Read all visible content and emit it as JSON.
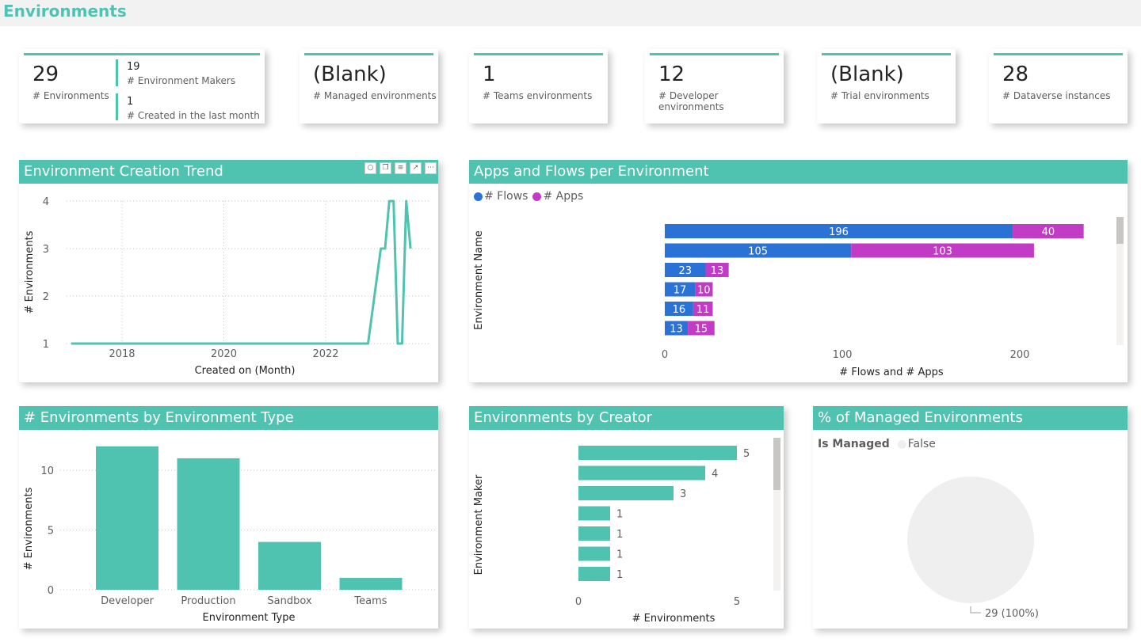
{
  "page": {
    "title": "Environments"
  },
  "cards": [
    {
      "value": "29",
      "label": "# Environments",
      "sub": [
        {
          "value": "19",
          "label": "# Environment Makers"
        },
        {
          "value": "1",
          "label": "# Created in the last month"
        }
      ]
    },
    {
      "value": "(Blank)",
      "label": "# Managed environments"
    },
    {
      "value": "1",
      "label": "# Teams environments"
    },
    {
      "value": "12",
      "label": "# Developer environments"
    },
    {
      "value": "(Blank)",
      "label": "# Trial environments"
    },
    {
      "value": "28",
      "label": "# Dataverse instances"
    }
  ],
  "colors": {
    "accent": "#4fc3b0",
    "flows": "#2b72d6",
    "apps": "#c23bc5",
    "pie": "#efefef"
  },
  "visual_tools": [
    "pin-icon",
    "copy-icon",
    "filter-icon",
    "focus-icon",
    "more-icon"
  ],
  "trend": {
    "title": "Environment Creation Trend",
    "chart_data": {
      "type": "line",
      "xlabel": "Created on (Month)",
      "ylabel": "# Environments",
      "xticks": [
        "2018",
        "2020",
        "2022"
      ],
      "yticks": [
        1,
        2,
        3,
        4
      ],
      "ylim": [
        1,
        4
      ],
      "grid": true,
      "x": [
        "2017-01",
        "2022-11",
        "2023-02",
        "2023-03",
        "2023-04",
        "2023-05",
        "2023-06",
        "2023-07",
        "2023-08",
        "2023-09"
      ],
      "values": [
        1,
        1,
        3,
        3,
        4,
        4,
        1,
        1,
        4,
        3
      ]
    }
  },
  "apps_flows": {
    "title": "Apps and Flows per Environment",
    "chart_data": {
      "type": "bar",
      "orientation": "horizontal",
      "stacked": true,
      "xlabel": "# Flows and # Apps",
      "ylabel": "Environment Name",
      "xticks": [
        0,
        100,
        200
      ],
      "legend_position": "top-left",
      "series": [
        {
          "name": "# Flows",
          "values": [
            196,
            105,
            23,
            17,
            16,
            13
          ]
        },
        {
          "name": "# Apps",
          "values": [
            40,
            103,
            13,
            10,
            11,
            15
          ]
        }
      ]
    }
  },
  "by_type": {
    "title": "# Environments by Environment Type",
    "chart_data": {
      "type": "bar",
      "xlabel": "Environment Type",
      "ylabel": "# Environments",
      "categories": [
        "Developer",
        "Production",
        "Sandbox",
        "Teams"
      ],
      "values": [
        12,
        11,
        4,
        1
      ],
      "yticks": [
        0,
        5,
        10
      ],
      "grid": true
    }
  },
  "by_creator": {
    "title": "Environments by Creator",
    "chart_data": {
      "type": "bar",
      "orientation": "horizontal",
      "xlabel": "# Environments",
      "ylabel": "Environment Maker",
      "xticks": [
        0,
        5
      ],
      "values": [
        5,
        4,
        3,
        1,
        1,
        1,
        1
      ]
    }
  },
  "managed": {
    "title": "% of Managed Environments",
    "legend_title": "Is Managed",
    "chart_data": {
      "type": "pie",
      "slices": [
        {
          "name": "False",
          "value": 29,
          "label": "29 (100%)"
        }
      ]
    }
  }
}
